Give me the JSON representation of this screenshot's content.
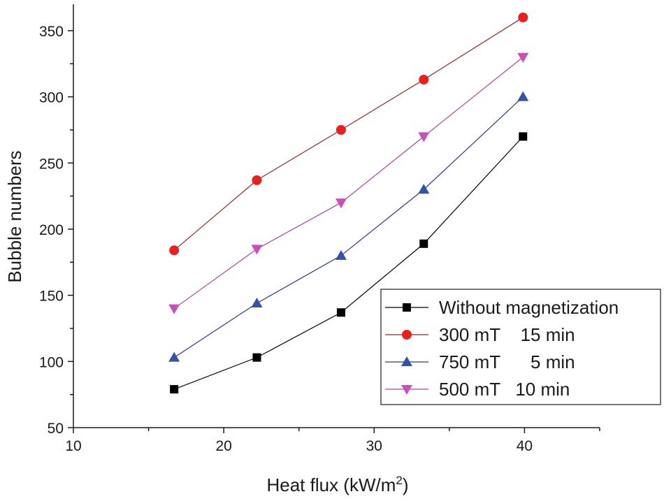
{
  "chart_data": {
    "type": "line",
    "title": "",
    "xlabel": "Heat flux (kW/m",
    "xlabel_superscript": "2",
    "xlabel_suffix": ")",
    "ylabel": "Bubble numbers",
    "xlim": [
      10,
      45
    ],
    "ylim": [
      50,
      370
    ],
    "x_major_ticks": [
      10,
      20,
      30,
      40
    ],
    "x_minor_ticks": [
      15,
      25,
      35,
      45
    ],
    "y_major_ticks": [
      50,
      100,
      150,
      200,
      250,
      300,
      350
    ],
    "x_tick_labels": [
      "10",
      "20",
      "30",
      "40"
    ],
    "y_tick_labels": [
      "50",
      "100",
      "150",
      "200",
      "250",
      "300",
      "350"
    ],
    "grid": false,
    "legend_position": "bottom-right",
    "x": [
      16.7,
      22.2,
      27.8,
      33.3,
      39.9
    ],
    "series": [
      {
        "name": "Without magnetization",
        "marker": "square",
        "color": "#000000",
        "values": [
          79,
          103,
          137,
          189,
          270
        ]
      },
      {
        "name": "300 mT    15 min",
        "marker": "circle",
        "color": "#e8201e",
        "line_color": "#8b2a2a",
        "values": [
          184,
          237,
          275,
          313,
          360
        ]
      },
      {
        "name": "750 mT      5 min",
        "marker": "triangle-up",
        "color": "#3452a8",
        "line_color": "#2a3a7a",
        "values": [
          103,
          144,
          180,
          230,
          300
        ]
      },
      {
        "name": "500 mT   10 min",
        "marker": "triangle-down",
        "color": "#c850b8",
        "line_color": "#a84898",
        "values": [
          140,
          185,
          220,
          270,
          330
        ]
      }
    ]
  }
}
